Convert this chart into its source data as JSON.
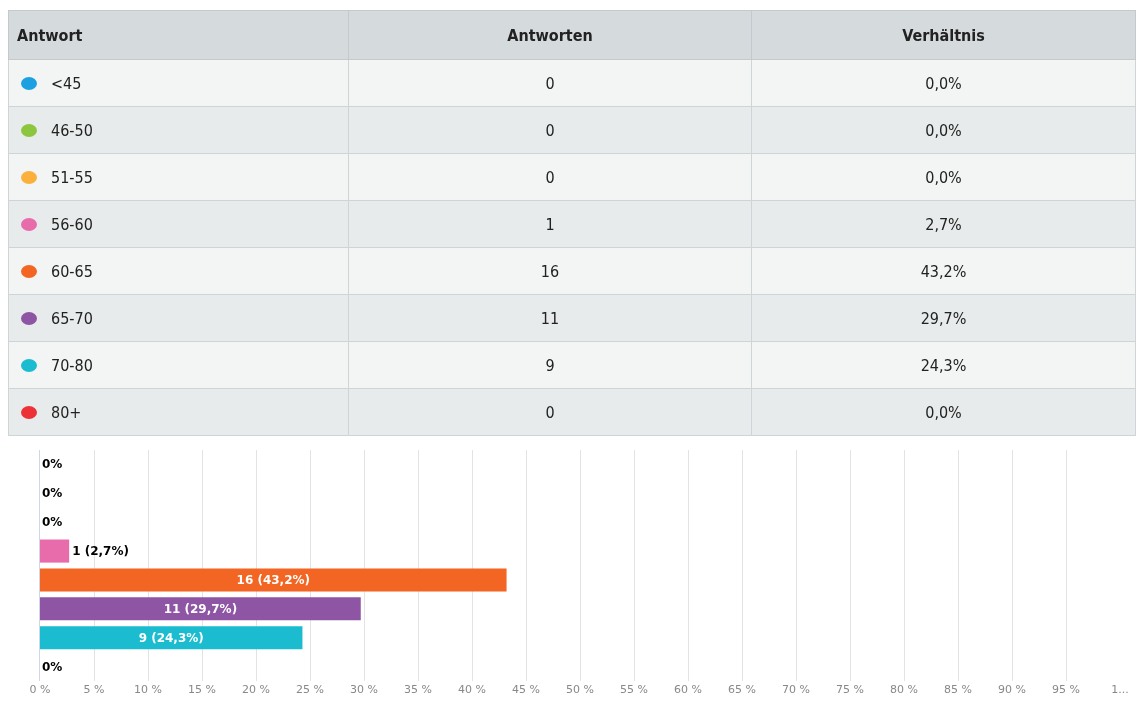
{
  "chart_data": {
    "type": "bar",
    "orientation": "horizontal",
    "categories": [
      null,
      null,
      null,
      null,
      null,
      null,
      null,
      null
    ],
    "colors": [
      "#1ba1e2",
      "#8cc63f",
      "#fbb03b",
      "#e86bac",
      "#f26522",
      "#8e55a5",
      "#1bbccf",
      "#ed3237"
    ],
    "values": [
      0,
      0,
      0,
      2.7,
      43.2,
      29.7,
      24.3,
      0
    ],
    "value_labels": [
      "0%",
      "0%",
      "0%",
      "1 (2,7%)",
      "16 (43,2%)",
      "11 (29,7%)",
      "9 (24,3%)",
      "0%"
    ],
    "xlim": [
      0,
      100
    ],
    "xticks": [
      {
        "value": 0,
        "label": "0 %"
      },
      {
        "value": 5,
        "label": "5 %"
      },
      {
        "value": 10,
        "label": "10 %"
      },
      {
        "value": 15,
        "label": "15 %"
      },
      {
        "value": 20,
        "label": "20 %"
      },
      {
        "value": 25,
        "label": "25 %"
      },
      {
        "value": 30,
        "label": "30 %"
      },
      {
        "value": 35,
        "label": "35 %"
      },
      {
        "value": 40,
        "label": "40 %"
      },
      {
        "value": 45,
        "label": "45 %"
      },
      {
        "value": 50,
        "label": "50 %"
      },
      {
        "value": 55,
        "label": "55 %"
      },
      {
        "value": 60,
        "label": "60 %"
      },
      {
        "value": 65,
        "label": "65 %"
      },
      {
        "value": 70,
        "label": "70 %"
      },
      {
        "value": 75,
        "label": "75 %"
      },
      {
        "value": 80,
        "label": "80 %"
      },
      {
        "value": 85,
        "label": "85 %"
      },
      {
        "value": 90,
        "label": "90 %"
      },
      {
        "value": 95,
        "label": "95 %"
      },
      {
        "value": 100,
        "label": "1..."
      }
    ],
    "grid": "x",
    "tick_labels": "x",
    "annotations": [
      "Antwort",
      "Antworten",
      "Verhältnis",
      "<45",
      "0",
      "0,0%",
      "46-50",
      "0",
      "0,0%",
      "51-55",
      "0",
      "0,0%",
      "56-60",
      "1",
      "2,7%",
      "60-65",
      "16",
      "43,2%",
      "65-70",
      "11",
      "29,7%",
      "70-80",
      "9",
      "24,3%",
      "80+",
      "0",
      "0,0%"
    ]
  }
}
